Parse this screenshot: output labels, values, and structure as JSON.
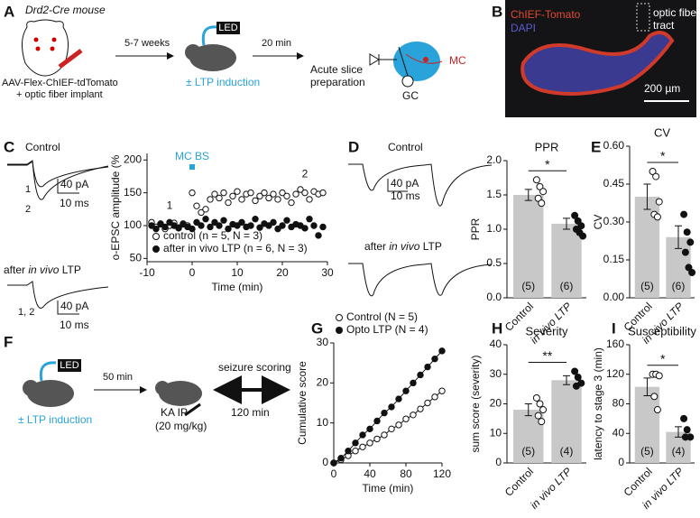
{
  "panels": {
    "A": {
      "letter": "A",
      "mouse": "Drd2-Cre mouse",
      "injection": "AAV-Flex-ChIEF-tdTomato",
      "implant": "+ optic fiber implant",
      "delay1": "5-7 weeks",
      "led": "LED",
      "induction": "± LTP induction",
      "delay2": "20 min",
      "prep1": "Acute slice",
      "prep2": "preparation",
      "mc": "MC",
      "gc": "GC"
    },
    "B": {
      "letter": "B",
      "stain1": "ChIEF-Tomato",
      "stain2": "DAPI",
      "fiber1": "optic fiber",
      "fiber2": "tract",
      "scale": "200 µm"
    },
    "C": {
      "letter": "C",
      "control": "Control",
      "after_pre": "after ",
      "after_em": "in vivo",
      "after_post": " LTP",
      "scale_pa": "40 pA",
      "scale_ms": "10 ms",
      "trace1": "1",
      "trace2": "2",
      "trace12": "1, 2"
    },
    "D": {
      "letter": "D",
      "control": "Control",
      "after_pre": "after ",
      "after_em": "in vivo",
      "after_post": " LTP",
      "scale_pa": "40 pA",
      "scale_ms": "10 ms"
    },
    "E": {
      "letter": "E"
    },
    "F": {
      "letter": "F",
      "led": "LED",
      "induction": "± LTP induction",
      "delay": "50 min",
      "ka": "KA IP",
      "dose": "(20 mg/kg)",
      "scoring": "seizure scoring",
      "duration": "120 min"
    },
    "G": {
      "letter": "G"
    },
    "H": {
      "letter": "H"
    },
    "I": {
      "letter": "I"
    }
  },
  "chart_data": [
    {
      "type": "scatter",
      "ylabel": "o-EPSC amplitude (%",
      "xlabel": "Time (min)",
      "mc_bs": "MC BS",
      "period_labels": [
        "1",
        "2"
      ],
      "xlim": [
        -10,
        30
      ],
      "xticks": [
        -10,
        0,
        10,
        20,
        30
      ],
      "ylim": [
        45,
        210
      ],
      "yticks": [
        50,
        100,
        150,
        200
      ],
      "x": [
        -9,
        -8,
        -7,
        -6,
        -5,
        -4,
        -3,
        -2,
        -1,
        0,
        1,
        2,
        3,
        4,
        5,
        6,
        7,
        8,
        9,
        10,
        11,
        12,
        13,
        14,
        15,
        16,
        17,
        18,
        19,
        20,
        21,
        22,
        23,
        24,
        25,
        26,
        27,
        28,
        29
      ],
      "series": [
        {
          "name": "control (n = 5, N = 3)",
          "color": "#ffffff",
          "values": [
            105,
            98,
            102,
            95,
            100,
            104,
            97,
            103,
            100,
            150,
            130,
            120,
            125,
            140,
            148,
            142,
            150,
            135,
            145,
            152,
            140,
            148,
            150,
            138,
            145,
            150,
            142,
            148,
            140,
            150,
            145,
            135,
            148,
            155,
            150,
            140,
            152,
            148,
            150
          ]
        },
        {
          "name": "after in vivo LTP (n = 6, N = 3)",
          "color": "#111111",
          "values": [
            100,
            95,
            103,
            98,
            105,
            100,
            96,
            102,
            98,
            95,
            105,
            100,
            110,
            98,
            105,
            100,
            108,
            95,
            102,
            100,
            105,
            98,
            100,
            110,
            97,
            103,
            100,
            105,
            95,
            100,
            108,
            98,
            102,
            100,
            96,
            110,
            100,
            85,
            98
          ]
        }
      ]
    },
    {
      "type": "bar",
      "title": "PPR",
      "ylabel": "PPR",
      "categories": [
        "Control",
        "in vivo LTP"
      ],
      "values": [
        1.5,
        1.08
      ],
      "errors": [
        0.08,
        0.08
      ],
      "points": [
        [
          1.72,
          1.62,
          1.55,
          1.45,
          1.38
        ],
        [
          1.2,
          1.12,
          1.05,
          1.0,
          0.95,
          0.9
        ]
      ],
      "n_labels": [
        "(5)",
        "(6)"
      ],
      "significance": "*",
      "color": "#c8c8c8",
      "ylim": [
        0,
        2.0
      ],
      "yticks": [
        {
          "value": 0,
          "label": "0.0"
        },
        {
          "value": 0.5,
          "label": "0.5"
        },
        {
          "value": 1,
          "label": "1.0"
        },
        {
          "value": 1.5,
          "label": "1.5"
        },
        {
          "value": 2,
          "label": "2.0"
        }
      ]
    },
    {
      "type": "bar",
      "title": "CV",
      "ylabel": "CV",
      "categories": [
        "Control",
        "in vivo LTP"
      ],
      "values": [
        0.4,
        0.24
      ],
      "errors": [
        0.05,
        0.045
      ],
      "points": [
        [
          0.5,
          0.48,
          0.38,
          0.33,
          0.32
        ],
        [
          0.33,
          0.26,
          0.22,
          0.18,
          0.12,
          0.1
        ]
      ],
      "n_labels": [
        "(5)",
        "(6)"
      ],
      "significance": "*",
      "color": "#c8c8c8",
      "ylim": [
        0,
        0.6
      ],
      "yticks": [
        {
          "value": 0,
          "label": "0.00"
        },
        0.15,
        {
          "value": 0.3,
          "label": "0.30"
        },
        0.45,
        {
          "value": 0.6,
          "label": "0.60"
        }
      ]
    },
    {
      "type": "line",
      "ylabel": "Cumulative score",
      "xlabel": "Time (min)",
      "xlim": [
        0,
        120
      ],
      "xticks": [
        0,
        40,
        80,
        120
      ],
      "ylim": [
        0,
        30
      ],
      "yticks": [
        0,
        10,
        20,
        30
      ],
      "x": [
        0,
        8,
        16,
        24,
        32,
        40,
        48,
        56,
        64,
        72,
        80,
        88,
        96,
        104,
        112,
        120
      ],
      "series": [
        {
          "name": "Control (N = 5)",
          "color": "#ffffff",
          "values": [
            0,
            0.8,
            1.8,
            3,
            4,
            5,
            6,
            7,
            8.5,
            9.5,
            11,
            12,
            13.5,
            15,
            16.5,
            18
          ]
        },
        {
          "name": "Opto LTP (N = 4)",
          "color": "#111111",
          "values": [
            0,
            1.2,
            3,
            5,
            7,
            8.5,
            10.5,
            12.5,
            14,
            16,
            18,
            20,
            22,
            24,
            26,
            28
          ]
        }
      ]
    },
    {
      "type": "bar",
      "title": "Severity",
      "ylabel": "sum score (severity)",
      "categories": [
        "Control",
        "in vivo LTP"
      ],
      "values": [
        18,
        28
      ],
      "errors": [
        2,
        1.5
      ],
      "points": [
        [
          22,
          20,
          18,
          16,
          14
        ],
        [
          31,
          29,
          27,
          26
        ]
      ],
      "n_labels": [
        "(5)",
        "(4)"
      ],
      "significance": "**",
      "color": "#c8c8c8",
      "ylim": [
        0,
        40
      ],
      "yticks": [
        0,
        10,
        20,
        30,
        40
      ]
    },
    {
      "type": "bar",
      "title": "Susceptibility",
      "ylabel": "latency to stage 3 (min)",
      "categories": [
        "Control",
        "in vivo LTP"
      ],
      "values": [
        103,
        42
      ],
      "errors": [
        12,
        7
      ],
      "points": [
        [
          120,
          120,
          118,
          90,
          72
        ],
        [
          60,
          45,
          35,
          35
        ]
      ],
      "n_labels": [
        "(5)",
        "(4)"
      ],
      "significance": "*",
      "color": "#c8c8c8",
      "ylim": [
        0,
        160
      ],
      "yticks": [
        0,
        40,
        80,
        120,
        160
      ]
    }
  ]
}
